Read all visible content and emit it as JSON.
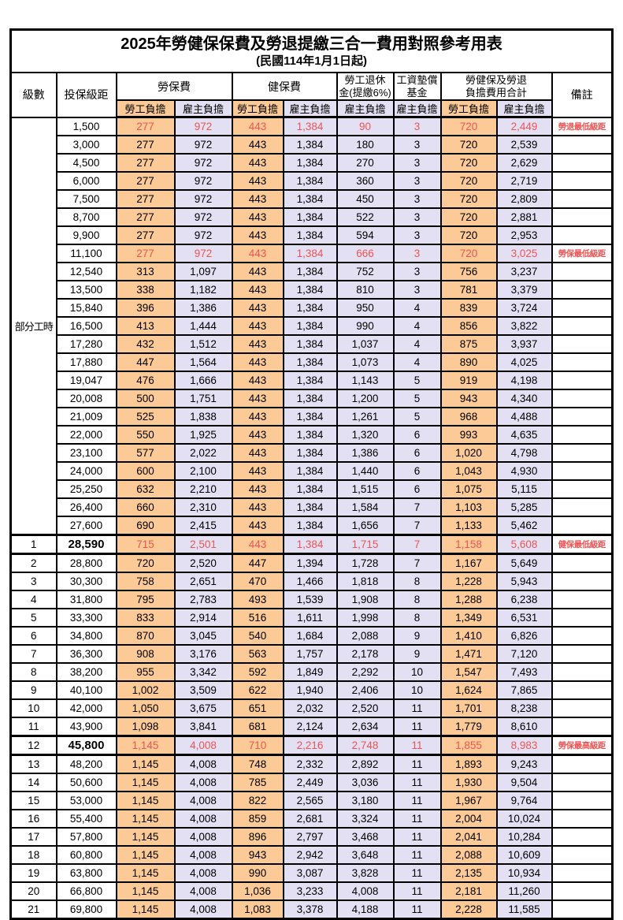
{
  "title": "2025年勞健保保費及勞退提繳三合一費用對照參考用表",
  "subtitle": "(民國114年1月1日起)",
  "colors": {
    "employee_share_bg": "#fbca96",
    "employer_share_bg": "#e2e0f2",
    "highlight_text": "#ed5555",
    "grid": "#000000"
  },
  "header": {
    "level": "級數",
    "bracket": "投保級距",
    "labor": "勞保費",
    "health": "健保費",
    "pension_line1": "勞工退休",
    "pension_line2": "金(提繳6%)",
    "wage_fund_line1": "工資墊償",
    "wage_fund_line2": "基金",
    "total_line1": "勞健保及勞退",
    "total_line2": "負擔費用合計",
    "remark": "備註",
    "employee": "勞工負擔",
    "employer": "雇主負擔"
  },
  "table": {
    "part_time_label": "部分工時",
    "part_time_span": 23,
    "rows": [
      {
        "level": "",
        "bracket": "1,500",
        "v": [
          "277",
          "972",
          "443",
          "1,384",
          "90",
          "3",
          "720",
          "2,449"
        ],
        "remark": "勞退最低級距",
        "red": true
      },
      {
        "level": "",
        "bracket": "3,000",
        "v": [
          "277",
          "972",
          "443",
          "1,384",
          "180",
          "3",
          "720",
          "2,539"
        ],
        "remark": ""
      },
      {
        "level": "",
        "bracket": "4,500",
        "v": [
          "277",
          "972",
          "443",
          "1,384",
          "270",
          "3",
          "720",
          "2,629"
        ],
        "remark": ""
      },
      {
        "level": "",
        "bracket": "6,000",
        "v": [
          "277",
          "972",
          "443",
          "1,384",
          "360",
          "3",
          "720",
          "2,719"
        ],
        "remark": ""
      },
      {
        "level": "",
        "bracket": "7,500",
        "v": [
          "277",
          "972",
          "443",
          "1,384",
          "450",
          "3",
          "720",
          "2,809"
        ],
        "remark": ""
      },
      {
        "level": "",
        "bracket": "8,700",
        "v": [
          "277",
          "972",
          "443",
          "1,384",
          "522",
          "3",
          "720",
          "2,881"
        ],
        "remark": ""
      },
      {
        "level": "",
        "bracket": "9,900",
        "v": [
          "277",
          "972",
          "443",
          "1,384",
          "594",
          "3",
          "720",
          "2,953"
        ],
        "remark": ""
      },
      {
        "level": "",
        "bracket": "11,100",
        "v": [
          "277",
          "972",
          "443",
          "1,384",
          "666",
          "3",
          "720",
          "3,025"
        ],
        "remark": "勞保最低級距",
        "red": true
      },
      {
        "level": "",
        "bracket": "12,540",
        "v": [
          "313",
          "1,097",
          "443",
          "1,384",
          "752",
          "3",
          "756",
          "3,237"
        ],
        "remark": ""
      },
      {
        "level": "",
        "bracket": "13,500",
        "v": [
          "338",
          "1,182",
          "443",
          "1,384",
          "810",
          "3",
          "781",
          "3,379"
        ],
        "remark": ""
      },
      {
        "level": "",
        "bracket": "15,840",
        "v": [
          "396",
          "1,386",
          "443",
          "1,384",
          "950",
          "4",
          "839",
          "3,724"
        ],
        "remark": ""
      },
      {
        "level": "",
        "bracket": "16,500",
        "v": [
          "413",
          "1,444",
          "443",
          "1,384",
          "990",
          "4",
          "856",
          "3,822"
        ],
        "remark": ""
      },
      {
        "level": "",
        "bracket": "17,280",
        "v": [
          "432",
          "1,512",
          "443",
          "1,384",
          "1,037",
          "4",
          "875",
          "3,937"
        ],
        "remark": ""
      },
      {
        "level": "",
        "bracket": "17,880",
        "v": [
          "447",
          "1,564",
          "443",
          "1,384",
          "1,073",
          "4",
          "890",
          "4,025"
        ],
        "remark": ""
      },
      {
        "level": "",
        "bracket": "19,047",
        "v": [
          "476",
          "1,666",
          "443",
          "1,384",
          "1,143",
          "5",
          "919",
          "4,198"
        ],
        "remark": ""
      },
      {
        "level": "",
        "bracket": "20,008",
        "v": [
          "500",
          "1,751",
          "443",
          "1,384",
          "1,200",
          "5",
          "943",
          "4,340"
        ],
        "remark": ""
      },
      {
        "level": "",
        "bracket": "21,009",
        "v": [
          "525",
          "1,838",
          "443",
          "1,384",
          "1,261",
          "5",
          "968",
          "4,488"
        ],
        "remark": ""
      },
      {
        "level": "",
        "bracket": "22,000",
        "v": [
          "550",
          "1,925",
          "443",
          "1,384",
          "1,320",
          "6",
          "993",
          "4,635"
        ],
        "remark": ""
      },
      {
        "level": "",
        "bracket": "23,100",
        "v": [
          "577",
          "2,022",
          "443",
          "1,384",
          "1,386",
          "6",
          "1,020",
          "4,798"
        ],
        "remark": ""
      },
      {
        "level": "",
        "bracket": "24,000",
        "v": [
          "600",
          "2,100",
          "443",
          "1,384",
          "1,440",
          "6",
          "1,043",
          "4,930"
        ],
        "remark": ""
      },
      {
        "level": "",
        "bracket": "25,250",
        "v": [
          "632",
          "2,210",
          "443",
          "1,384",
          "1,515",
          "6",
          "1,075",
          "5,115"
        ],
        "remark": ""
      },
      {
        "level": "",
        "bracket": "26,400",
        "v": [
          "660",
          "2,310",
          "443",
          "1,384",
          "1,584",
          "7",
          "1,103",
          "5,285"
        ],
        "remark": ""
      },
      {
        "level": "",
        "bracket": "27,600",
        "v": [
          "690",
          "2,415",
          "443",
          "1,384",
          "1,656",
          "7",
          "1,133",
          "5,462"
        ],
        "remark": ""
      },
      {
        "level": "1",
        "bracket": "28,590",
        "v": [
          "715",
          "2,501",
          "443",
          "1,384",
          "1,715",
          "7",
          "1,158",
          "5,608"
        ],
        "remark": "健保最低級距",
        "red": true,
        "bold": true,
        "heavy": true
      },
      {
        "level": "2",
        "bracket": "28,800",
        "v": [
          "720",
          "2,520",
          "447",
          "1,394",
          "1,728",
          "7",
          "1,167",
          "5,649"
        ],
        "remark": ""
      },
      {
        "level": "3",
        "bracket": "30,300",
        "v": [
          "758",
          "2,651",
          "470",
          "1,466",
          "1,818",
          "8",
          "1,228",
          "5,943"
        ],
        "remark": ""
      },
      {
        "level": "4",
        "bracket": "31,800",
        "v": [
          "795",
          "2,783",
          "493",
          "1,539",
          "1,908",
          "8",
          "1,288",
          "6,238"
        ],
        "remark": ""
      },
      {
        "level": "5",
        "bracket": "33,300",
        "v": [
          "833",
          "2,914",
          "516",
          "1,611",
          "1,998",
          "8",
          "1,349",
          "6,531"
        ],
        "remark": ""
      },
      {
        "level": "6",
        "bracket": "34,800",
        "v": [
          "870",
          "3,045",
          "540",
          "1,684",
          "2,088",
          "9",
          "1,410",
          "6,826"
        ],
        "remark": ""
      },
      {
        "level": "7",
        "bracket": "36,300",
        "v": [
          "908",
          "3,176",
          "563",
          "1,757",
          "2,178",
          "9",
          "1,471",
          "7,120"
        ],
        "remark": ""
      },
      {
        "level": "8",
        "bracket": "38,200",
        "v": [
          "955",
          "3,342",
          "592",
          "1,849",
          "2,292",
          "10",
          "1,547",
          "7,493"
        ],
        "remark": ""
      },
      {
        "level": "9",
        "bracket": "40,100",
        "v": [
          "1,002",
          "3,509",
          "622",
          "1,940",
          "2,406",
          "10",
          "1,624",
          "7,865"
        ],
        "remark": ""
      },
      {
        "level": "10",
        "bracket": "42,000",
        "v": [
          "1,050",
          "3,675",
          "651",
          "2,032",
          "2,520",
          "11",
          "1,701",
          "8,238"
        ],
        "remark": ""
      },
      {
        "level": "11",
        "bracket": "43,900",
        "v": [
          "1,098",
          "3,841",
          "681",
          "2,124",
          "2,634",
          "11",
          "1,779",
          "8,610"
        ],
        "remark": ""
      },
      {
        "level": "12",
        "bracket": "45,800",
        "v": [
          "1,145",
          "4,008",
          "710",
          "2,216",
          "2,748",
          "11",
          "1,855",
          "8,983"
        ],
        "remark": "勞保最高級距",
        "red": true,
        "bold": true,
        "heavy": true
      },
      {
        "level": "13",
        "bracket": "48,200",
        "v": [
          "1,145",
          "4,008",
          "748",
          "2,332",
          "2,892",
          "11",
          "1,893",
          "9,243"
        ],
        "remark": ""
      },
      {
        "level": "14",
        "bracket": "50,600",
        "v": [
          "1,145",
          "4,008",
          "785",
          "2,449",
          "3,036",
          "11",
          "1,930",
          "9,504"
        ],
        "remark": ""
      },
      {
        "level": "15",
        "bracket": "53,000",
        "v": [
          "1,145",
          "4,008",
          "822",
          "2,565",
          "3,180",
          "11",
          "1,967",
          "9,764"
        ],
        "remark": ""
      },
      {
        "level": "16",
        "bracket": "55,400",
        "v": [
          "1,145",
          "4,008",
          "859",
          "2,681",
          "3,324",
          "11",
          "2,004",
          "10,024"
        ],
        "remark": ""
      },
      {
        "level": "17",
        "bracket": "57,800",
        "v": [
          "1,145",
          "4,008",
          "896",
          "2,797",
          "3,468",
          "11",
          "2,041",
          "10,284"
        ],
        "remark": ""
      },
      {
        "level": "18",
        "bracket": "60,800",
        "v": [
          "1,145",
          "4,008",
          "943",
          "2,942",
          "3,648",
          "11",
          "2,088",
          "10,609"
        ],
        "remark": ""
      },
      {
        "level": "19",
        "bracket": "63,800",
        "v": [
          "1,145",
          "4,008",
          "990",
          "3,087",
          "3,828",
          "11",
          "2,135",
          "10,934"
        ],
        "remark": ""
      },
      {
        "level": "20",
        "bracket": "66,800",
        "v": [
          "1,145",
          "4,008",
          "1,036",
          "3,233",
          "4,008",
          "11",
          "2,181",
          "11,260"
        ],
        "remark": ""
      },
      {
        "level": "21",
        "bracket": "69,800",
        "v": [
          "1,145",
          "4,008",
          "1,083",
          "3,378",
          "4,188",
          "11",
          "2,228",
          "11,585"
        ],
        "remark": ""
      }
    ]
  }
}
